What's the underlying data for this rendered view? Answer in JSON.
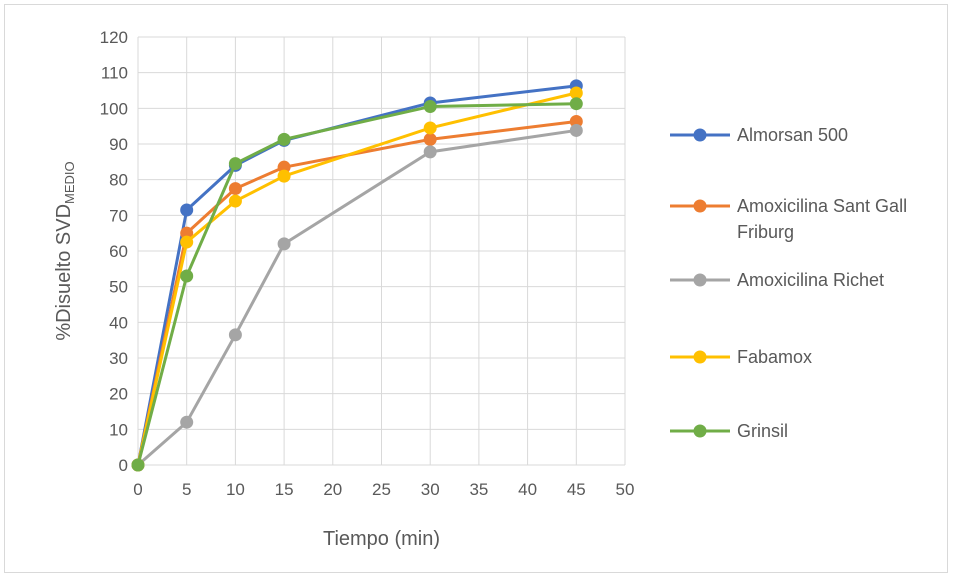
{
  "chart_data": {
    "type": "line",
    "title": "",
    "xlabel": "Tiempo (min)",
    "ylabel_main": "%Disuelto SVD",
    "ylabel_sub": "MEDIO",
    "xlim": [
      0,
      50
    ],
    "ylim": [
      0,
      120
    ],
    "x_ticks": [
      0,
      5,
      10,
      15,
      20,
      25,
      30,
      35,
      40,
      45,
      50
    ],
    "y_ticks": [
      0,
      10,
      20,
      30,
      40,
      50,
      60,
      70,
      80,
      90,
      100,
      110,
      120
    ],
    "grid": true,
    "legend_position": "right",
    "x": [
      0,
      5,
      10,
      15,
      30,
      45
    ],
    "series": [
      {
        "name": "Almorsan 500",
        "color": "#4472C4",
        "values": [
          0,
          71.5,
          84,
          91,
          101.5,
          106.3
        ]
      },
      {
        "name": "Amoxicilina Sant Gall Friburg",
        "legend_lines": [
          "Amoxicilina Sant Gall",
          "Friburg"
        ],
        "color": "#ED7D31",
        "values": [
          0,
          65,
          77.5,
          83.5,
          91.3,
          96.3
        ]
      },
      {
        "name": "Amoxicilina Richet",
        "color": "#A5A5A5",
        "values": [
          0,
          12,
          36.5,
          62,
          87.8,
          93.8
        ]
      },
      {
        "name": "Fabamox",
        "color": "#FFC000",
        "values": [
          0,
          62.5,
          74,
          81,
          94.5,
          104.3
        ]
      },
      {
        "name": "Grinsil",
        "color": "#70AD47",
        "values": [
          0,
          53,
          84.5,
          91.3,
          100.5,
          101.3
        ]
      }
    ]
  }
}
